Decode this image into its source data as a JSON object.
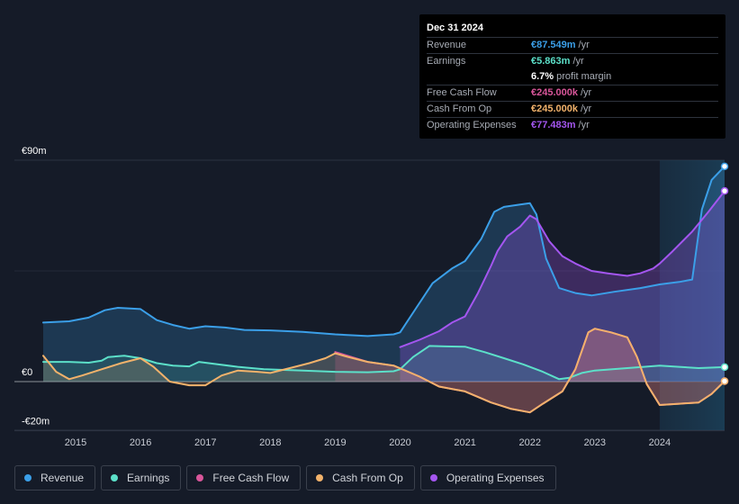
{
  "tooltip": {
    "date": "Dec 31 2024",
    "rows": [
      {
        "label": "Revenue",
        "value": "€87.549m",
        "unit": "/yr",
        "color": "#3b9fe8"
      },
      {
        "label": "Earnings",
        "value": "€5.863m",
        "unit": "/yr",
        "color": "#5ce0c9"
      },
      {
        "label": "",
        "value": "6.7%",
        "unit": "profit margin",
        "color": "#ffffff"
      },
      {
        "label": "Free Cash Flow",
        "value": "€245.000k",
        "unit": "/yr",
        "color": "#d9569a"
      },
      {
        "label": "Cash From Op",
        "value": "€245.000k",
        "unit": "/yr",
        "color": "#f2b26b"
      },
      {
        "label": "Operating Expenses",
        "value": "€77.483m",
        "unit": "/yr",
        "color": "#a456f0"
      }
    ]
  },
  "legend": [
    {
      "label": "Revenue",
      "color": "#3b9fe8"
    },
    {
      "label": "Earnings",
      "color": "#5ce0c9"
    },
    {
      "label": "Free Cash Flow",
      "color": "#d9569a"
    },
    {
      "label": "Cash From Op",
      "color": "#f2b26b"
    },
    {
      "label": "Operating Expenses",
      "color": "#a456f0"
    }
  ],
  "chart_data": {
    "type": "area",
    "title": "",
    "xlabel": "",
    "ylabel": "",
    "ylim": [
      -20,
      90
    ],
    "y_ticks": [
      {
        "value": 90,
        "label": "€90m"
      },
      {
        "value": 0,
        "label": "€0"
      },
      {
        "value": -20,
        "label": "-€20m"
      }
    ],
    "xlim": [
      2014.5,
      2025.0
    ],
    "x_ticks": [
      "2015",
      "2016",
      "2017",
      "2018",
      "2019",
      "2020",
      "2021",
      "2022",
      "2023",
      "2024"
    ],
    "highlight_start": 2024.0,
    "series": [
      {
        "name": "Revenue",
        "color": "#3b9fe8",
        "points": [
          [
            2014.5,
            24
          ],
          [
            2014.9,
            24.5
          ],
          [
            2015.2,
            26
          ],
          [
            2015.45,
            29
          ],
          [
            2015.65,
            30
          ],
          [
            2016.0,
            29.5
          ],
          [
            2016.25,
            25
          ],
          [
            2016.5,
            23
          ],
          [
            2016.75,
            21.5
          ],
          [
            2017.0,
            22.5
          ],
          [
            2017.3,
            22
          ],
          [
            2017.6,
            21
          ],
          [
            2018.0,
            20.8
          ],
          [
            2018.5,
            20.2
          ],
          [
            2019.0,
            19.2
          ],
          [
            2019.5,
            18.5
          ],
          [
            2019.9,
            19.2
          ],
          [
            2020.0,
            20
          ],
          [
            2020.25,
            30
          ],
          [
            2020.5,
            40
          ],
          [
            2020.8,
            46
          ],
          [
            2021.0,
            49
          ],
          [
            2021.25,
            58
          ],
          [
            2021.45,
            69
          ],
          [
            2021.6,
            71
          ],
          [
            2021.85,
            72
          ],
          [
            2022.0,
            72.5
          ],
          [
            2022.1,
            68
          ],
          [
            2022.25,
            50
          ],
          [
            2022.45,
            38
          ],
          [
            2022.7,
            36
          ],
          [
            2022.95,
            35
          ],
          [
            2023.3,
            36.5
          ],
          [
            2023.7,
            38
          ],
          [
            2024.0,
            39.5
          ],
          [
            2024.3,
            40.5
          ],
          [
            2024.5,
            41.5
          ],
          [
            2024.65,
            70
          ],
          [
            2024.8,
            82
          ],
          [
            2025.0,
            87.5
          ]
        ]
      },
      {
        "name": "Earnings",
        "color": "#5ce0c9",
        "points": [
          [
            2014.5,
            8
          ],
          [
            2014.9,
            8
          ],
          [
            2015.2,
            7.7
          ],
          [
            2015.4,
            8.5
          ],
          [
            2015.5,
            10
          ],
          [
            2015.75,
            10.5
          ],
          [
            2016.0,
            9.5
          ],
          [
            2016.25,
            7.5
          ],
          [
            2016.5,
            6.5
          ],
          [
            2016.75,
            6.2
          ],
          [
            2016.9,
            8
          ],
          [
            2017.2,
            7
          ],
          [
            2017.5,
            6
          ],
          [
            2017.9,
            5
          ],
          [
            2018.5,
            4.5
          ],
          [
            2019.0,
            4
          ],
          [
            2019.5,
            3.8
          ],
          [
            2019.9,
            4.2
          ],
          [
            2020.0,
            5
          ],
          [
            2020.2,
            10
          ],
          [
            2020.45,
            14.5
          ],
          [
            2020.7,
            14.3
          ],
          [
            2021.0,
            14.2
          ],
          [
            2021.3,
            12
          ],
          [
            2021.6,
            9.5
          ],
          [
            2021.9,
            7
          ],
          [
            2022.2,
            4
          ],
          [
            2022.45,
            1
          ],
          [
            2022.6,
            1.5
          ],
          [
            2022.8,
            3.5
          ],
          [
            2023.0,
            4.5
          ],
          [
            2023.5,
            5.5
          ],
          [
            2024.0,
            6.5
          ],
          [
            2024.3,
            6
          ],
          [
            2024.6,
            5.5
          ],
          [
            2025.0,
            5.9
          ]
        ]
      },
      {
        "name": "Free Cash Flow",
        "color": "#d9569a",
        "points": [
          [
            2019.0,
            12
          ],
          [
            2019.5,
            8
          ],
          [
            2019.9,
            6.5
          ],
          [
            2020.3,
            2
          ],
          [
            2020.6,
            -2
          ],
          [
            2021.0,
            -4
          ],
          [
            2021.4,
            -8.5
          ],
          [
            2021.7,
            -11
          ],
          [
            2022.0,
            -12.5
          ],
          [
            2022.2,
            -9
          ],
          [
            2022.5,
            -4
          ],
          [
            2022.7,
            5
          ],
          [
            2022.9,
            20
          ],
          [
            2023.0,
            21.5
          ],
          [
            2023.25,
            20
          ],
          [
            2023.5,
            18
          ],
          [
            2023.65,
            10
          ],
          [
            2023.8,
            -1
          ],
          [
            2024.0,
            -9.5
          ],
          [
            2024.3,
            -9
          ],
          [
            2024.6,
            -8.5
          ],
          [
            2024.8,
            -5
          ],
          [
            2025.0,
            0.2
          ]
        ]
      },
      {
        "name": "Cash From Op",
        "color": "#f2b26b",
        "points": [
          [
            2014.5,
            10.5
          ],
          [
            2014.7,
            4
          ],
          [
            2014.9,
            1
          ],
          [
            2015.1,
            2.5
          ],
          [
            2015.4,
            5
          ],
          [
            2015.7,
            7.5
          ],
          [
            2016.0,
            9.5
          ],
          [
            2016.2,
            6
          ],
          [
            2016.45,
            0
          ],
          [
            2016.75,
            -1.5
          ],
          [
            2017.0,
            -1.5
          ],
          [
            2017.25,
            2.5
          ],
          [
            2017.5,
            4.5
          ],
          [
            2017.8,
            4
          ],
          [
            2018.0,
            3.5
          ],
          [
            2018.3,
            5.5
          ],
          [
            2018.6,
            7.5
          ],
          [
            2018.85,
            9.5
          ],
          [
            2019.0,
            11.5
          ],
          [
            2019.2,
            10
          ],
          [
            2019.5,
            8
          ],
          [
            2019.9,
            6.5
          ],
          [
            2020.3,
            2
          ],
          [
            2020.6,
            -2
          ],
          [
            2021.0,
            -4
          ],
          [
            2021.4,
            -8.5
          ],
          [
            2021.7,
            -11
          ],
          [
            2022.0,
            -12.5
          ],
          [
            2022.2,
            -9
          ],
          [
            2022.5,
            -4
          ],
          [
            2022.7,
            5
          ],
          [
            2022.9,
            20
          ],
          [
            2023.0,
            21.5
          ],
          [
            2023.25,
            20
          ],
          [
            2023.5,
            18
          ],
          [
            2023.65,
            10
          ],
          [
            2023.8,
            -1
          ],
          [
            2024.0,
            -9.5
          ],
          [
            2024.3,
            -9
          ],
          [
            2024.6,
            -8.5
          ],
          [
            2024.8,
            -5
          ],
          [
            2025.0,
            0.2
          ]
        ]
      },
      {
        "name": "Operating Expenses",
        "color": "#a456f0",
        "points": [
          [
            2020.0,
            14
          ],
          [
            2020.3,
            17
          ],
          [
            2020.6,
            20.5
          ],
          [
            2020.8,
            24
          ],
          [
            2021.0,
            26.5
          ],
          [
            2021.2,
            36
          ],
          [
            2021.4,
            47
          ],
          [
            2021.5,
            53
          ],
          [
            2021.65,
            59
          ],
          [
            2021.85,
            63
          ],
          [
            2022.0,
            67.5
          ],
          [
            2022.1,
            66
          ],
          [
            2022.3,
            57
          ],
          [
            2022.5,
            51
          ],
          [
            2022.7,
            48
          ],
          [
            2022.95,
            45
          ],
          [
            2023.2,
            44
          ],
          [
            2023.5,
            43
          ],
          [
            2023.7,
            44
          ],
          [
            2023.9,
            46
          ],
          [
            2024.0,
            48
          ],
          [
            2024.2,
            53
          ],
          [
            2024.5,
            61
          ],
          [
            2024.75,
            69
          ],
          [
            2025.0,
            77.5
          ]
        ]
      }
    ]
  }
}
